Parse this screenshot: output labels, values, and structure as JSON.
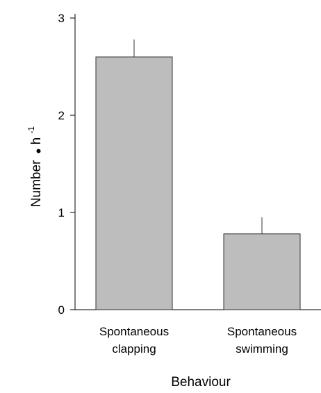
{
  "chart_data": {
    "type": "bar",
    "categories": [
      [
        "Spontaneous",
        "clapping"
      ],
      [
        "Spontaneous",
        "swimming"
      ]
    ],
    "values": [
      2.6,
      0.78
    ],
    "error_upper": [
      2.78,
      0.95
    ],
    "ylim": [
      0,
      3
    ],
    "yticks": [
      "0",
      "1",
      "2",
      "3"
    ],
    "ylabel_main": "Number",
    "ylabel_dot": "•",
    "ylabel_unit": "h",
    "ylabel_exp": "-1",
    "xlabel": "Behaviour",
    "bar_color": "#bdbdbd",
    "bar_edge_color": "#333333",
    "grid": false,
    "legend": "none"
  }
}
